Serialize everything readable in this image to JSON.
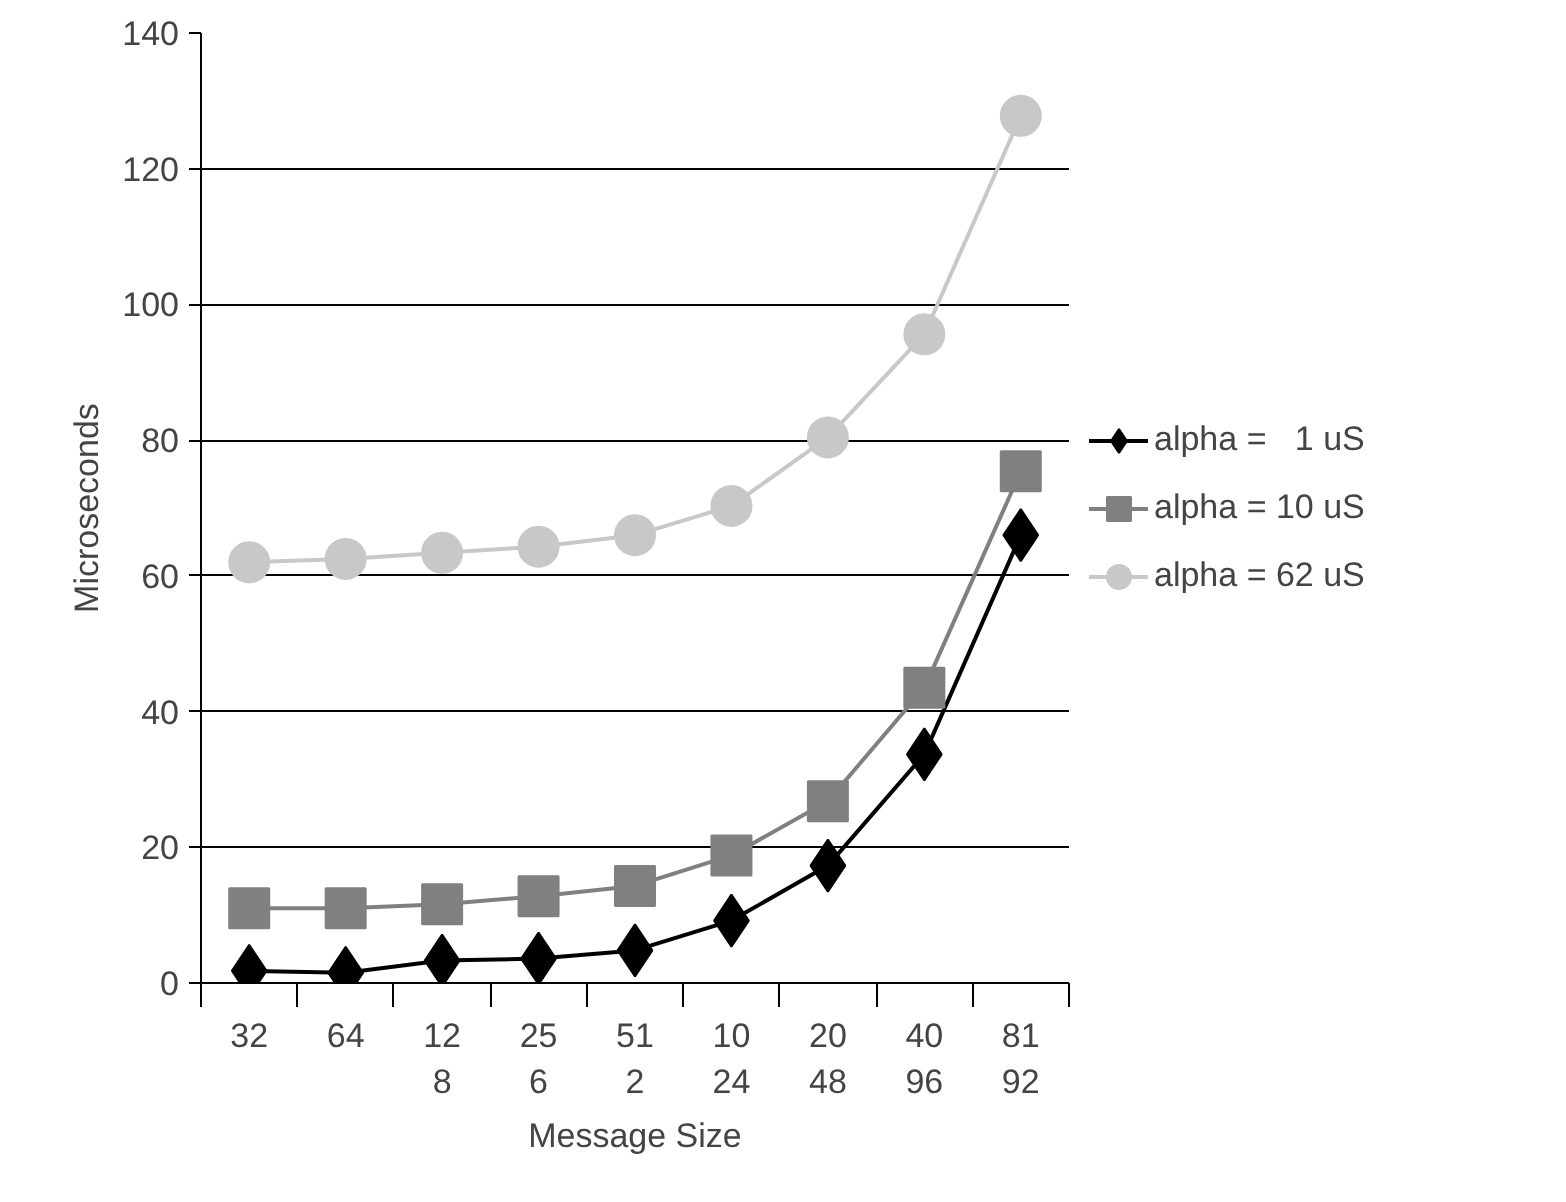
{
  "chart_data": {
    "type": "line",
    "xlabel": "Message Size",
    "ylabel": "Microseconds",
    "categories": [
      "32",
      "64",
      "128",
      "256",
      "512",
      "1024",
      "2048",
      "4096",
      "8192"
    ],
    "series": [
      {
        "name": "alpha =   1 uS",
        "color": "#000000",
        "marker": "diamond",
        "values": [
          1.8,
          1.5,
          3.3,
          3.6,
          4.8,
          9.2,
          17.3,
          33.7,
          66
        ]
      },
      {
        "name": "alpha = 10 uS",
        "color": "#808080",
        "marker": "square",
        "values": [
          11,
          11,
          11.6,
          12.8,
          14.3,
          18.8,
          26.8,
          43.5,
          75.4
        ]
      },
      {
        "name": "alpha = 62 uS",
        "color": "#c8c8c8",
        "marker": "circle",
        "values": [
          62,
          62.5,
          63.4,
          64.3,
          66,
          70.3,
          80.4,
          95.6,
          127.8
        ]
      }
    ],
    "ylim": [
      0,
      140
    ],
    "yticks": [
      0,
      20,
      40,
      60,
      80,
      100,
      120,
      140
    ],
    "grid": "y",
    "legend": "right"
  }
}
